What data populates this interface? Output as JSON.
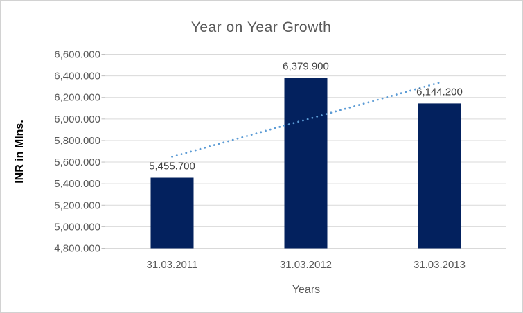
{
  "chart_data": {
    "type": "bar",
    "title": "Year on Year Growth",
    "xlabel": "Years",
    "ylabel": "INR in Mlns.",
    "categories": [
      "31.03.2011",
      "31.03.2012",
      "31.03.2013"
    ],
    "values": [
      5455.7,
      6379.9,
      6144.2
    ],
    "data_labels": [
      "5,455.700",
      "6,379.900",
      "6,144.200"
    ],
    "ylim": [
      4800,
      6600
    ],
    "y_tick_step": 200,
    "y_tick_labels": [
      "4,800.000",
      "5,000.000",
      "5,200.000",
      "5,400.000",
      "5,600.000",
      "5,800.000",
      "6,000.000",
      "6,200.000",
      "6,400.000",
      "6,600.000"
    ],
    "grid": true,
    "legend": "none",
    "trendline": {
      "type": "linear",
      "style": "dotted-round"
    },
    "colors": {
      "bar": "#03215E",
      "trendline": "#5B9BD5",
      "gridline": "#D9D9D9",
      "tick_mark": "#BFBFBF",
      "axis_text": "#595959",
      "data_label_text": "#404040",
      "title_text": "#595959",
      "y_axis_title_text": "#000000",
      "border": "#D2D2D2",
      "background": "#FFFFFF"
    }
  }
}
